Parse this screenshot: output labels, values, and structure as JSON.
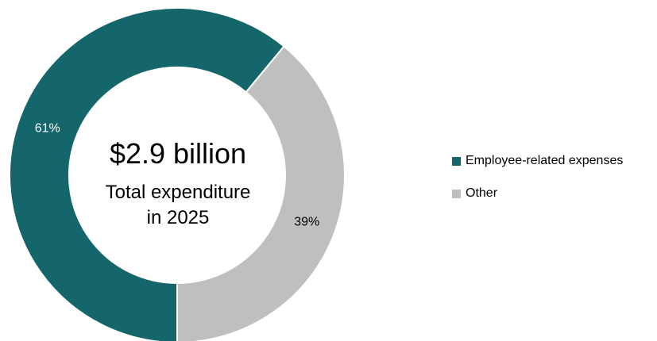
{
  "chart_data": {
    "type": "pie",
    "donut": true,
    "center": {
      "value": "$2.9 billion",
      "line1": "Total expenditure",
      "line2": "in 2025"
    },
    "slices": [
      {
        "label": "Employee-related expenses",
        "value": 61,
        "data_label": "61%",
        "color": "#14666a",
        "label_color": "#ffffff"
      },
      {
        "label": "Other",
        "value": 39,
        "data_label": "39%",
        "color": "#bfbfbf",
        "label_color": "#000000"
      }
    ],
    "legend_position": "right"
  }
}
